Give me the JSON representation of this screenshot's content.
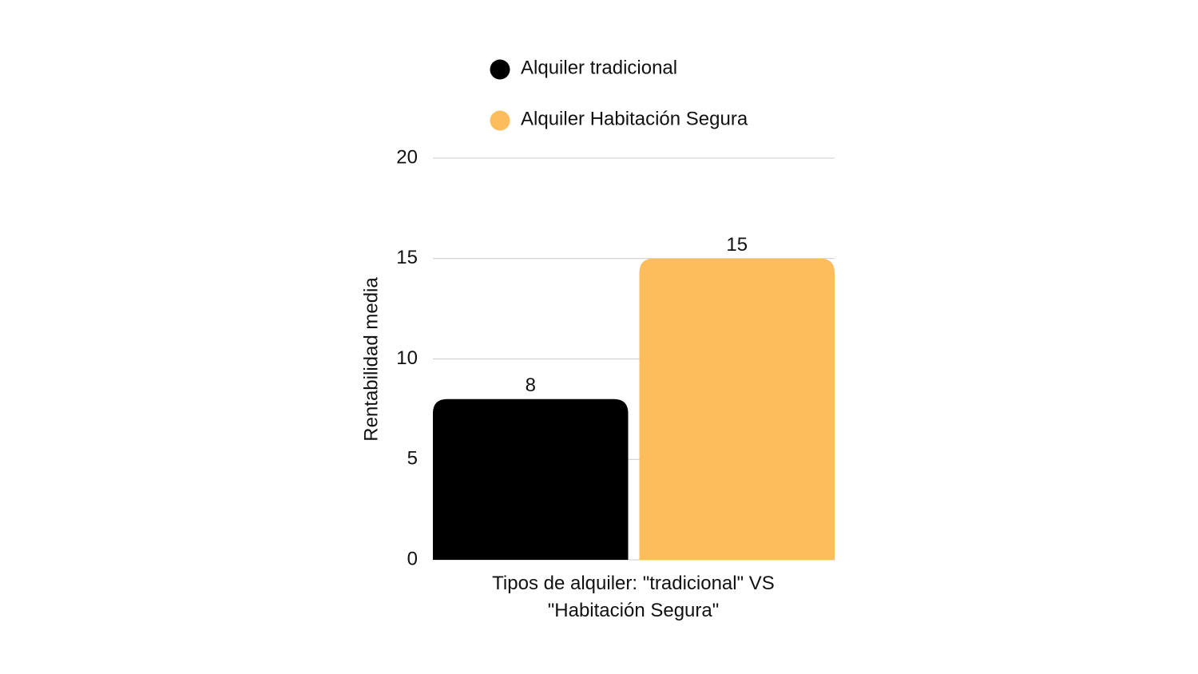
{
  "chart_data": {
    "type": "bar",
    "x_label": "Tipos de alquiler: \"tradicional\" VS \"Habitación Segura\"",
    "y_label": "Rentabilidad media",
    "categories": [
      null
    ],
    "series": [
      {
        "name": "Alquiler tradicional",
        "color": "#000000",
        "values": [
          8
        ]
      },
      {
        "name": "Alquiler Habitación Segura",
        "color": "#FDBD5C",
        "values": [
          15
        ]
      }
    ],
    "ylim": [
      0,
      20
    ],
    "yticks": [
      0,
      5,
      10,
      15,
      20
    ],
    "grid": true,
    "legend": "top"
  }
}
